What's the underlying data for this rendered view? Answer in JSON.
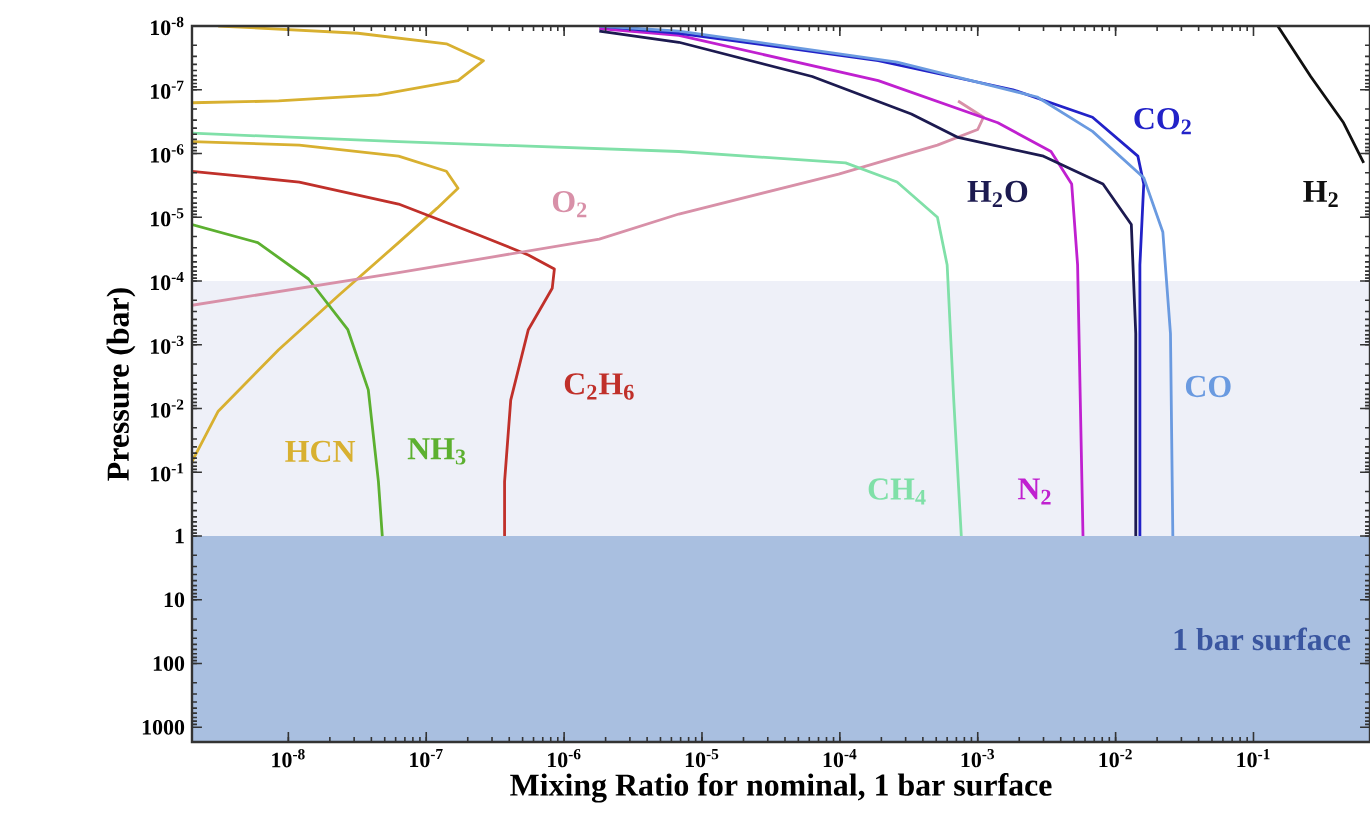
{
  "chart_data": {
    "type": "line",
    "xlabel": "Mixing Ratio for nominal, 1 bar surface",
    "ylabel": "Pressure (bar)",
    "log": "xy",
    "xlim": [
      2e-09,
      0.7
    ],
    "ylim": [
      1700,
      1e-08
    ],
    "xticks": [
      {
        "value": 1e-08,
        "label": "10$^{-8}$"
      },
      {
        "value": 1e-07,
        "label": "10$^{-7}$"
      },
      {
        "value": 1e-06,
        "label": "10$^{-6}$"
      },
      {
        "value": 1e-05,
        "label": "10$^{-5}$"
      },
      {
        "value": 0.0001,
        "label": "10$^{-4}$"
      },
      {
        "value": 0.001,
        "label": "10$^{-3}$"
      },
      {
        "value": 0.01,
        "label": "10$^{-2}$"
      },
      {
        "value": 0.1,
        "label": "10$^{-1}$"
      }
    ],
    "yticks": [
      {
        "value": 1e-08,
        "label": "10$^{-8}$"
      },
      {
        "value": 1e-07,
        "label": "10$^{-7}$"
      },
      {
        "value": 1e-06,
        "label": "10$^{-6}$"
      },
      {
        "value": 1e-05,
        "label": "10$^{-5}$"
      },
      {
        "value": 0.0001,
        "label": "10$^{-4}$"
      },
      {
        "value": 0.001,
        "label": "10$^{-3}$"
      },
      {
        "value": 0.01,
        "label": "10$^{-2}$"
      },
      {
        "value": 0.1,
        "label": "10$^{-1}$"
      },
      1,
      10,
      100,
      1000
    ],
    "bands": [
      {
        "axis": "y",
        "from": 0.0001,
        "to": 1,
        "color": "#eef0f8"
      },
      {
        "axis": "y",
        "from": 1,
        "to": 1700,
        "color": "#a9bfe0",
        "label": "1 bar surface"
      }
    ],
    "series": [
      {
        "name": "HCN",
        "color": "#d8b030",
        "x": [
          3.1e-09,
          3.2e-08,
          1.4e-07,
          2.6e-07,
          1.7e-07,
          4.5e-08,
          8.5e-09,
          2e-09,
          null,
          2e-09,
          1.2e-08,
          6.3e-08,
          1.4e-07,
          1.7e-07,
          1.2e-07,
          6.3e-08,
          2.3e-08,
          8.5e-09,
          3.1e-09,
          2e-09
        ],
        "values": [
          1e-08,
          1.3e-08,
          1.9e-08,
          3.5e-08,
          7.2e-08,
          1.2e-07,
          1.5e-07,
          1.6e-07,
          null,
          6.5e-07,
          7.4e-07,
          1.1e-06,
          1.9e-06,
          3.5e-06,
          7.2e-06,
          2.5e-05,
          0.00017,
          0.0012,
          0.011,
          0.068
        ]
      },
      {
        "name": "NH$_{3}$",
        "color": "#5cb030",
        "x": [
          2e-09,
          6e-09,
          1.4e-08,
          2.7e-08,
          3.8e-08,
          4.5e-08,
          4.8e-08
        ],
        "values": [
          1.3e-05,
          2.5e-05,
          9.3e-05,
          0.00058,
          0.0051,
          0.14,
          1
        ]
      },
      {
        "name": "C$_{2}$H$_{6}$",
        "color": "#c0302a",
        "x": [
          2e-09,
          1.2e-08,
          6.3e-08,
          2.4e-07,
          5.5e-07,
          8.5e-07,
          8.2e-07,
          5.5e-07,
          4.1e-07,
          3.7e-07,
          3.7e-07
        ],
        "values": [
          1.9e-06,
          2.8e-06,
          6.2e-06,
          1.9e-05,
          3.9e-05,
          6.5e-05,
          0.00013,
          0.00058,
          0.0074,
          0.14,
          1
        ]
      },
      {
        "name": "O$_{2}$",
        "color": "#d890a8",
        "x": [
          2e-09,
          6.3e-08,
          1.8e-06,
          6.8e-06,
          9.8e-05,
          0.00051,
          0.001,
          0.0011,
          0.00072
        ],
        "values": [
          0.00024,
          7.4e-05,
          2.2e-05,
          8.9e-06,
          2.1e-06,
          7.4e-07,
          4.2e-07,
          2.7e-07,
          1.5e-07
        ]
      },
      {
        "name": "CH$_{4}$",
        "color": "#80e0a8",
        "x": [
          2e-09,
          6.3e-08,
          6.8e-06,
          0.00011,
          0.00026,
          0.00051,
          0.0006,
          0.00067,
          0.00076
        ],
        "values": [
          4.8e-07,
          6.5e-07,
          9.3e-07,
          1.4e-06,
          2.8e-06,
          1e-05,
          5.6e-05,
          0.0074,
          1
        ]
      },
      {
        "name": "N$_{2}$",
        "color": "#c020d0",
        "x": [
          1.8e-06,
          6.8e-06,
          0.00019,
          0.0014,
          0.0034,
          0.0048,
          0.0053,
          0.0058
        ],
        "values": [
          1.1e-08,
          1.4e-08,
          7.2e-08,
          3.3e-07,
          9.3e-07,
          3e-06,
          5.6e-05,
          1
        ]
      },
      {
        "name": "H$_{2}$O",
        "color": "#1c1a50",
        "x": [
          1.8e-06,
          6.8e-06,
          6.3e-05,
          0.00033,
          0.00072,
          0.003,
          0.0081,
          0.013,
          0.014,
          0.014
        ],
        "values": [
          1.2e-08,
          1.8e-08,
          6.2e-08,
          2.4e-07,
          5.6e-07,
          1.1e-06,
          3e-06,
          1.3e-05,
          0.00067,
          1
        ]
      },
      {
        "name": "CO$_{2}$",
        "color": "#2222c8",
        "x": [
          1.8e-06,
          6.8e-06,
          0.00019,
          0.0018,
          0.0068,
          0.0145,
          0.016,
          0.015,
          0.015
        ],
        "values": [
          1e-08,
          1.3e-08,
          3.5e-08,
          1e-07,
          2.7e-07,
          1.1e-06,
          3e-06,
          5.6e-05,
          1
        ]
      },
      {
        "name": "CO",
        "color": "#6a9ae0",
        "x": [
          1.8e-06,
          6.8e-06,
          0.00026,
          0.0027,
          0.0068,
          0.016,
          0.022,
          0.025,
          0.026
        ],
        "values": [
          1e-08,
          1.2e-08,
          3.7e-08,
          1.3e-07,
          4.5e-07,
          2.4e-06,
          1.7e-05,
          0.00067,
          1
        ]
      },
      {
        "name": "H$_{2}$",
        "color": "#101010",
        "x": [
          0.15,
          0.26,
          0.45,
          0.63
        ],
        "values": [
          1e-08,
          6.2e-08,
          3.3e-07,
          1.4e-06
        ]
      }
    ]
  }
}
